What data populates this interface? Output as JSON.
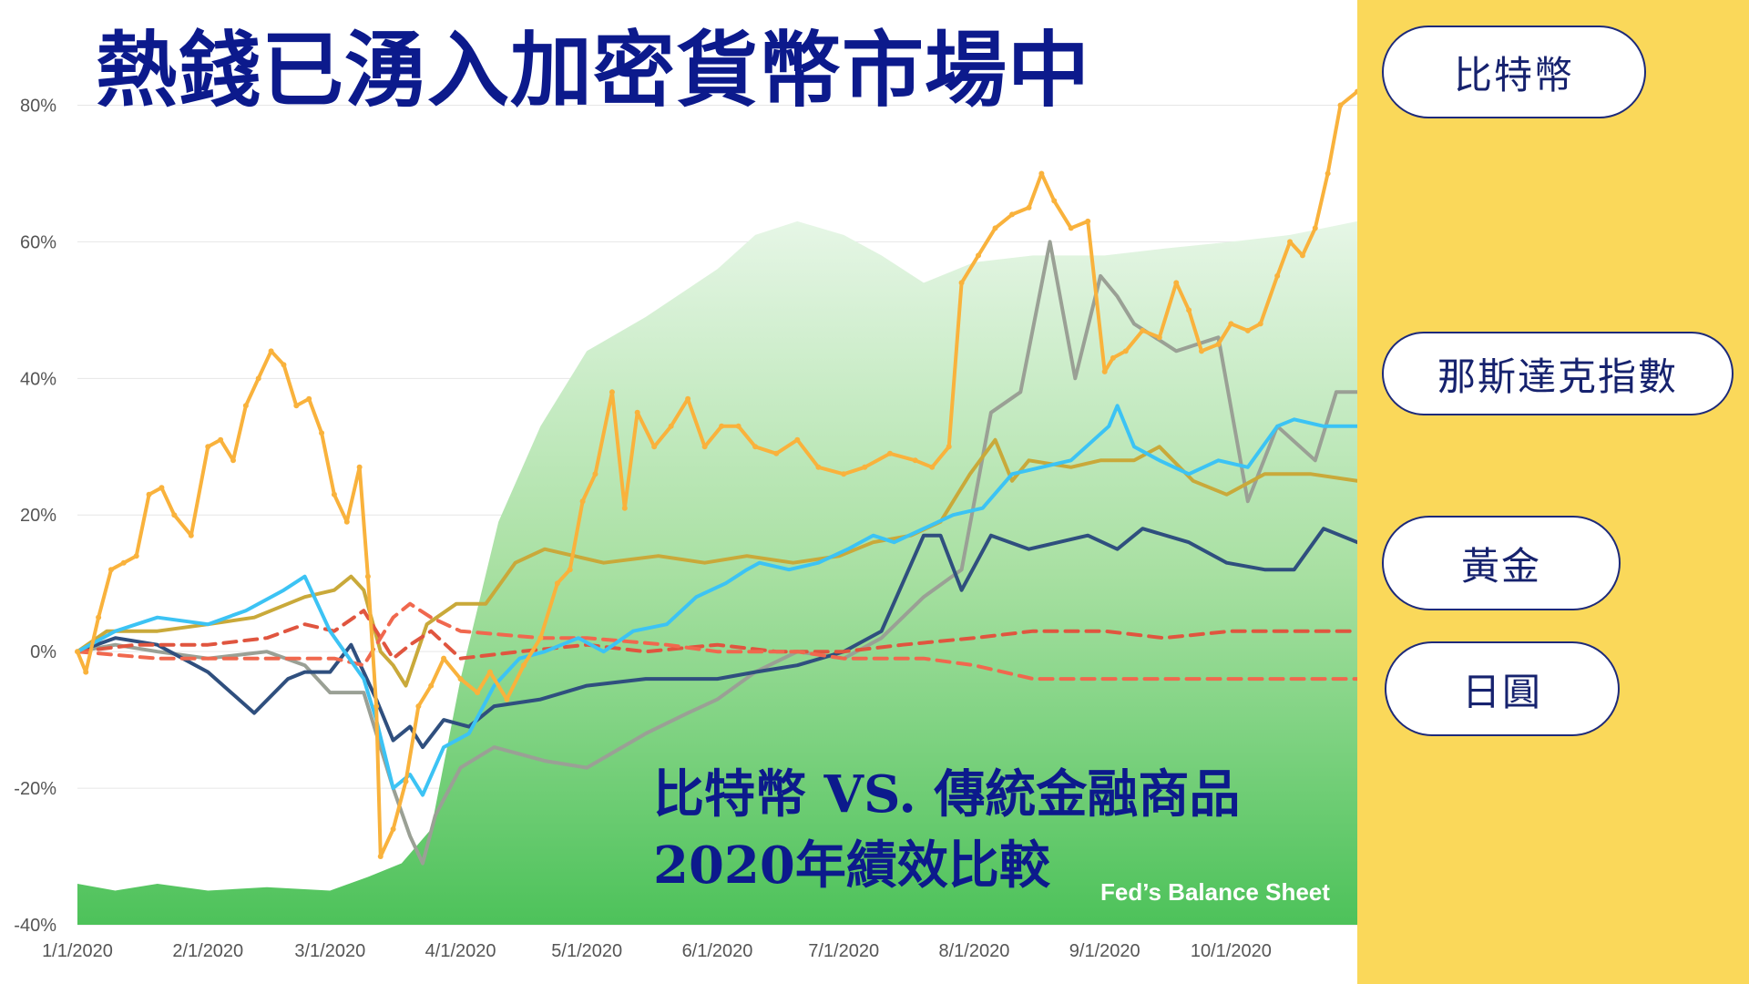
{
  "title": "熱錢已湧入加密貨幣市場中",
  "subtitle_line1": "比特幣  VS. 傳統金融商品",
  "subtitle_line2": "2020年績效比較",
  "area_label": "Fed’s Balance Sheet",
  "legend": [
    {
      "label": "比特幣",
      "color": "#f9b23c"
    },
    {
      "label": "那斯達克指數",
      "color": "#3cc3f4"
    },
    {
      "label": "黃金",
      "color": "#c9a93a"
    },
    {
      "label": "日圓",
      "color": "#e0553f"
    }
  ],
  "colors": {
    "panel": "#fad85a",
    "title": "#0c1a8c",
    "area_top": "#e6f6e6",
    "area_bottom": "#4dc25a"
  },
  "chart_data": {
    "type": "line",
    "ylim": [
      -40,
      85
    ],
    "yticks": [
      80,
      60,
      40,
      20,
      0,
      -20,
      -40
    ],
    "ytick_labels": [
      "80%",
      "60%",
      "40%",
      "20%",
      "0%",
      "-20%",
      "-40%"
    ],
    "xlim": [
      "2020-01-01",
      "2020-10-31"
    ],
    "xtick_labels": [
      "1/1/2020",
      "2/1/2020",
      "3/1/2020",
      "4/1/2020",
      "5/1/2020",
      "6/1/2020",
      "7/1/2020",
      "8/1/2020",
      "9/1/2020",
      "10/1/2020"
    ],
    "xtick_dates": [
      "2020-01-01",
      "2020-02-01",
      "2020-03-01",
      "2020-04-01",
      "2020-05-01",
      "2020-06-01",
      "2020-07-01",
      "2020-08-01",
      "2020-09-01",
      "2020-10-01"
    ],
    "area": {
      "name": "Fed’s Balance Sheet",
      "x": [
        "2020-01-01",
        "2020-01-10",
        "2020-01-20",
        "2020-02-01",
        "2020-02-15",
        "2020-03-01",
        "2020-03-10",
        "2020-03-18",
        "2020-03-25",
        "2020-04-01",
        "2020-04-10",
        "2020-04-20",
        "2020-05-01",
        "2020-05-15",
        "2020-06-01",
        "2020-06-10",
        "2020-06-20",
        "2020-07-01",
        "2020-07-10",
        "2020-07-20",
        "2020-08-01",
        "2020-08-15",
        "2020-09-01",
        "2020-09-15",
        "2020-10-01",
        "2020-10-15",
        "2020-10-31"
      ],
      "y": [
        -34,
        -35,
        -34,
        -35,
        -34.5,
        -35,
        -33,
        -31,
        -26,
        -4,
        19,
        33,
        44,
        49,
        56,
        61,
        63,
        61,
        58,
        54,
        57,
        58,
        58,
        59,
        60,
        61,
        63
      ]
    },
    "series": [
      {
        "key": "btc",
        "color": "#f9b23c",
        "width": 4,
        "dash": false,
        "marker": true,
        "x": [
          "2020-01-01",
          "2020-01-03",
          "2020-01-06",
          "2020-01-09",
          "2020-01-12",
          "2020-01-15",
          "2020-01-18",
          "2020-01-21",
          "2020-01-24",
          "2020-01-28",
          "2020-02-01",
          "2020-02-04",
          "2020-02-07",
          "2020-02-10",
          "2020-02-13",
          "2020-02-16",
          "2020-02-19",
          "2020-02-22",
          "2020-02-25",
          "2020-02-28",
          "2020-03-02",
          "2020-03-05",
          "2020-03-08",
          "2020-03-10",
          "2020-03-12",
          "2020-03-13",
          "2020-03-16",
          "2020-03-19",
          "2020-03-22",
          "2020-03-25",
          "2020-03-28",
          "2020-04-01",
          "2020-04-05",
          "2020-04-08",
          "2020-04-12",
          "2020-04-16",
          "2020-04-20",
          "2020-04-24",
          "2020-04-27",
          "2020-04-30",
          "2020-05-03",
          "2020-05-07",
          "2020-05-10",
          "2020-05-13",
          "2020-05-17",
          "2020-05-21",
          "2020-05-25",
          "2020-05-29",
          "2020-06-02",
          "2020-06-06",
          "2020-06-10",
          "2020-06-15",
          "2020-06-20",
          "2020-06-25",
          "2020-07-01",
          "2020-07-06",
          "2020-07-12",
          "2020-07-18",
          "2020-07-22",
          "2020-07-26",
          "2020-07-29",
          "2020-08-02",
          "2020-08-06",
          "2020-08-10",
          "2020-08-14",
          "2020-08-17",
          "2020-08-20",
          "2020-08-24",
          "2020-08-28",
          "2020-09-01",
          "2020-09-03",
          "2020-09-06",
          "2020-09-10",
          "2020-09-14",
          "2020-09-18",
          "2020-09-21",
          "2020-09-24",
          "2020-09-28",
          "2020-10-01",
          "2020-10-05",
          "2020-10-08",
          "2020-10-12",
          "2020-10-15",
          "2020-10-18",
          "2020-10-21",
          "2020-10-24",
          "2020-10-27",
          "2020-10-31"
        ],
        "y": [
          0,
          -3,
          5,
          12,
          13,
          14,
          23,
          24,
          20,
          17,
          30,
          31,
          28,
          36,
          40,
          44,
          42,
          36,
          37,
          32,
          23,
          19,
          27,
          11,
          -8,
          -30,
          -26,
          -19,
          -8,
          -5,
          -1,
          -4,
          -6,
          -3,
          -7,
          -2,
          2,
          10,
          12,
          22,
          26,
          38,
          21,
          35,
          30,
          33,
          37,
          30,
          33,
          33,
          30,
          29,
          31,
          27,
          26,
          27,
          29,
          28,
          27,
          30,
          54,
          58,
          62,
          64,
          65,
          70,
          66,
          62,
          63,
          41,
          43,
          44,
          47,
          46,
          54,
          50,
          44,
          45,
          48,
          47,
          48,
          55,
          60,
          58,
          62,
          70,
          80,
          82
        ]
      },
      {
        "key": "nasdaq",
        "color": "#3cc3f4",
        "width": 4,
        "dash": false,
        "marker": false,
        "x": [
          "2020-01-01",
          "2020-01-10",
          "2020-01-20",
          "2020-02-01",
          "2020-02-10",
          "2020-02-19",
          "2020-02-24",
          "2020-03-01",
          "2020-03-09",
          "2020-03-12",
          "2020-03-16",
          "2020-03-20",
          "2020-03-23",
          "2020-03-28",
          "2020-04-03",
          "2020-04-09",
          "2020-04-15",
          "2020-04-21",
          "2020-04-29",
          "2020-05-05",
          "2020-05-12",
          "2020-05-20",
          "2020-05-27",
          "2020-06-03",
          "2020-06-08",
          "2020-06-11",
          "2020-06-18",
          "2020-06-25",
          "2020-07-02",
          "2020-07-08",
          "2020-07-13",
          "2020-07-20",
          "2020-07-27",
          "2020-08-03",
          "2020-08-10",
          "2020-08-17",
          "2020-08-24",
          "2020-09-02",
          "2020-09-04",
          "2020-09-08",
          "2020-09-14",
          "2020-09-21",
          "2020-09-28",
          "2020-10-05",
          "2020-10-12",
          "2020-10-16",
          "2020-10-23",
          "2020-10-31"
        ],
        "y": [
          0,
          3,
          5,
          4,
          6,
          9,
          11,
          3,
          -4,
          -10,
          -20,
          -18,
          -21,
          -14,
          -12,
          -5,
          -1,
          0,
          2,
          0,
          3,
          4,
          8,
          10,
          12,
          13,
          12,
          13,
          15,
          17,
          16,
          18,
          20,
          21,
          26,
          27,
          28,
          33,
          36,
          30,
          28,
          26,
          28,
          27,
          33,
          34,
          33,
          33
        ]
      },
      {
        "key": "gold",
        "color": "#c9a93a",
        "width": 4,
        "dash": false,
        "marker": false,
        "x": [
          "2020-01-01",
          "2020-01-08",
          "2020-01-20",
          "2020-02-01",
          "2020-02-12",
          "2020-02-24",
          "2020-03-02",
          "2020-03-06",
          "2020-03-09",
          "2020-03-13",
          "2020-03-16",
          "2020-03-19",
          "2020-03-24",
          "2020-03-31",
          "2020-04-07",
          "2020-04-14",
          "2020-04-21",
          "2020-04-28",
          "2020-05-05",
          "2020-05-18",
          "2020-05-29",
          "2020-06-08",
          "2020-06-19",
          "2020-06-30",
          "2020-07-08",
          "2020-07-17",
          "2020-07-24",
          "2020-07-31",
          "2020-08-06",
          "2020-08-10",
          "2020-08-14",
          "2020-08-24",
          "2020-08-31",
          "2020-09-08",
          "2020-09-14",
          "2020-09-22",
          "2020-09-30",
          "2020-10-09",
          "2020-10-20",
          "2020-10-31"
        ],
        "y": [
          0,
          3,
          3,
          4,
          5,
          8,
          9,
          11,
          9,
          0,
          -2,
          -5,
          4,
          7,
          7,
          13,
          15,
          14,
          13,
          14,
          13,
          14,
          13,
          14,
          16,
          17,
          19,
          26,
          31,
          25,
          28,
          27,
          28,
          28,
          30,
          25,
          23,
          26,
          26,
          25
        ]
      },
      {
        "key": "jpy",
        "color": "#e0553f",
        "width": 4,
        "dash": true,
        "marker": false,
        "x": [
          "2020-01-01",
          "2020-01-15",
          "2020-02-01",
          "2020-02-15",
          "2020-02-24",
          "2020-03-02",
          "2020-03-09",
          "2020-03-16",
          "2020-03-20",
          "2020-03-25",
          "2020-04-01",
          "2020-04-15",
          "2020-05-01",
          "2020-05-15",
          "2020-06-01",
          "2020-06-15",
          "2020-07-01",
          "2020-07-15",
          "2020-08-01",
          "2020-08-15",
          "2020-09-01",
          "2020-09-15",
          "2020-10-01",
          "2020-10-15",
          "2020-10-31"
        ],
        "y": [
          0,
          1,
          1,
          2,
          4,
          3,
          6,
          -1,
          1,
          3,
          -1,
          0,
          1,
          0,
          1,
          0,
          0,
          1,
          2,
          3,
          3,
          2,
          3,
          3,
          3
        ]
      },
      {
        "key": "dollar",
        "color": "#f0684e",
        "width": 4,
        "dash": true,
        "marker": false,
        "x": [
          "2020-01-01",
          "2020-01-20",
          "2020-02-01",
          "2020-02-20",
          "2020-03-02",
          "2020-03-09",
          "2020-03-16",
          "2020-03-20",
          "2020-03-25",
          "2020-04-01",
          "2020-04-20",
          "2020-05-01",
          "2020-05-20",
          "2020-06-01",
          "2020-06-20",
          "2020-07-01",
          "2020-07-20",
          "2020-08-01",
          "2020-08-15",
          "2020-09-01",
          "2020-09-15",
          "2020-10-01",
          "2020-10-20",
          "2020-10-31"
        ],
        "y": [
          0,
          -1,
          -1,
          -1,
          -1,
          -2,
          5,
          7,
          5,
          3,
          2,
          2,
          1,
          0,
          0,
          -1,
          -1,
          -2,
          -4,
          -4,
          -4,
          -4,
          -4,
          -4
        ]
      },
      {
        "key": "navy",
        "color": "#2f4f7e",
        "width": 4,
        "dash": false,
        "marker": false,
        "x": [
          "2020-01-01",
          "2020-01-10",
          "2020-01-20",
          "2020-02-01",
          "2020-02-12",
          "2020-02-20",
          "2020-02-24",
          "2020-03-01",
          "2020-03-06",
          "2020-03-12",
          "2020-03-16",
          "2020-03-20",
          "2020-03-23",
          "2020-03-28",
          "2020-04-03",
          "2020-04-09",
          "2020-04-20",
          "2020-05-01",
          "2020-05-15",
          "2020-06-01",
          "2020-06-10",
          "2020-06-20",
          "2020-07-01",
          "2020-07-10",
          "2020-07-20",
          "2020-07-24",
          "2020-07-29",
          "2020-08-05",
          "2020-08-14",
          "2020-08-21",
          "2020-08-28",
          "2020-09-04",
          "2020-09-10",
          "2020-09-21",
          "2020-09-30",
          "2020-10-09",
          "2020-10-16",
          "2020-10-23",
          "2020-10-31"
        ],
        "y": [
          0,
          2,
          1,
          -3,
          -9,
          -4,
          -3,
          -3,
          1,
          -7,
          -13,
          -11,
          -14,
          -10,
          -11,
          -8,
          -7,
          -5,
          -4,
          -4,
          -3,
          -2,
          0,
          3,
          17,
          17,
          9,
          17,
          15,
          16,
          17,
          15,
          18,
          16,
          13,
          12,
          12,
          18,
          16
        ]
      },
      {
        "key": "gray",
        "color": "#9aa095",
        "width": 4,
        "dash": false,
        "marker": false,
        "x": [
          "2020-01-01",
          "2020-01-10",
          "2020-01-20",
          "2020-02-01",
          "2020-02-15",
          "2020-02-24",
          "2020-03-01",
          "2020-03-09",
          "2020-03-12",
          "2020-03-16",
          "2020-03-20",
          "2020-03-23",
          "2020-03-26",
          "2020-04-01",
          "2020-04-09",
          "2020-04-21",
          "2020-05-01",
          "2020-05-15",
          "2020-05-25",
          "2020-06-01",
          "2020-06-10",
          "2020-06-20",
          "2020-07-01",
          "2020-07-10",
          "2020-07-20",
          "2020-07-29",
          "2020-08-05",
          "2020-08-12",
          "2020-08-19",
          "2020-08-25",
          "2020-08-31",
          "2020-09-04",
          "2020-09-08",
          "2020-09-18",
          "2020-09-28",
          "2020-10-05",
          "2020-10-12",
          "2020-10-21",
          "2020-10-26",
          "2020-10-31"
        ],
        "y": [
          0,
          1,
          0,
          -1,
          0,
          -2,
          -6,
          -6,
          -12,
          -20,
          -27,
          -31,
          -24,
          -17,
          -14,
          -16,
          -17,
          -12,
          -9,
          -7,
          -3,
          0,
          -1,
          2,
          8,
          12,
          35,
          38,
          60,
          40,
          55,
          52,
          48,
          44,
          46,
          22,
          33,
          28,
          38,
          38
        ]
      }
    ]
  }
}
